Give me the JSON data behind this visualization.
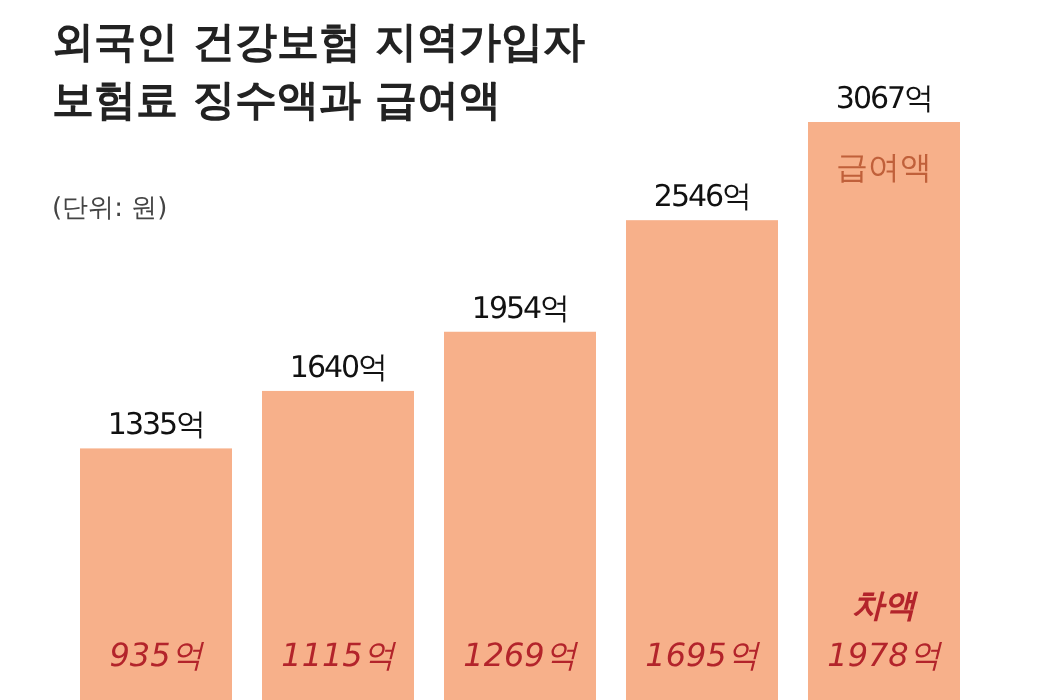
{
  "chart_data": {
    "type": "bar",
    "title": "외국인 건강보험 지역가입자 보험료 징수액과 급여액",
    "subtitle": "(단위: 원)",
    "categories": [
      null,
      null,
      null,
      null,
      null
    ],
    "series": [
      {
        "name": "급여액",
        "color": "#f7b08a",
        "values": [
          1335,
          1640,
          1954,
          2546,
          3067
        ],
        "value_labels": [
          "1335억",
          "1640억",
          "1954억",
          "2546억",
          "3067억"
        ]
      }
    ],
    "annotations": [
      "차액",
      "935억",
      "1115억",
      "1269억",
      "1695억",
      "1978억"
    ]
  }
}
